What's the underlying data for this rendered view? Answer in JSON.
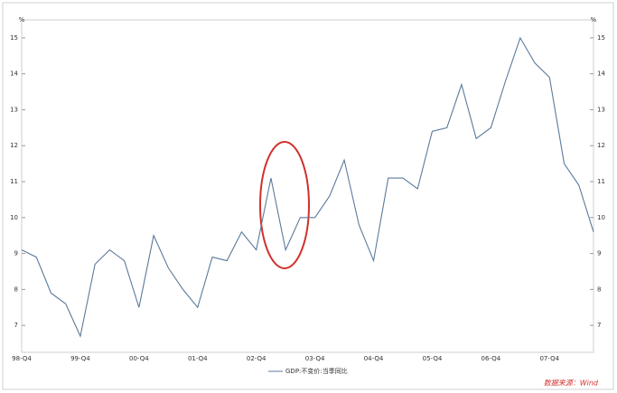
{
  "chart_data": {
    "type": "line",
    "y_label": "%",
    "y2_label": "%",
    "categories": [
      "98-Q4",
      null,
      null,
      null,
      "99-Q4",
      null,
      null,
      null,
      "00-Q4",
      null,
      null,
      null,
      "01-Q4",
      null,
      null,
      null,
      "02-Q4",
      null,
      null,
      null,
      "03-Q4",
      null,
      null,
      null,
      "04-Q4",
      null,
      null,
      null,
      "05-Q4",
      null,
      null,
      null,
      "06-Q4",
      null,
      null,
      null,
      "07-Q4",
      null,
      null,
      null
    ],
    "series": [
      {
        "name": "GDP:不变价:当季同比",
        "color": "#5b7a9b",
        "values": [
          9.1,
          8.9,
          7.9,
          7.6,
          6.7,
          8.7,
          9.1,
          8.8,
          7.5,
          9.5,
          8.6,
          8.0,
          7.5,
          8.9,
          8.8,
          9.6,
          9.1,
          11.1,
          9.1,
          10.0,
          10.0,
          10.6,
          11.6,
          9.8,
          8.8,
          11.1,
          11.1,
          10.8,
          12.4,
          12.5,
          13.7,
          12.2,
          12.5,
          13.8,
          15.0,
          14.3,
          13.9,
          11.5,
          10.9,
          9.6
        ]
      }
    ],
    "ylim": [
      6.25,
      15.5
    ],
    "yticks": [
      7,
      8,
      9,
      10,
      11,
      12,
      13,
      14,
      15
    ],
    "y2lim": [
      6.25,
      15.5
    ],
    "y2ticks": [
      7,
      8,
      9,
      10,
      11,
      12,
      13,
      14,
      15
    ],
    "grid": false,
    "source": "数据来源：Wind"
  }
}
